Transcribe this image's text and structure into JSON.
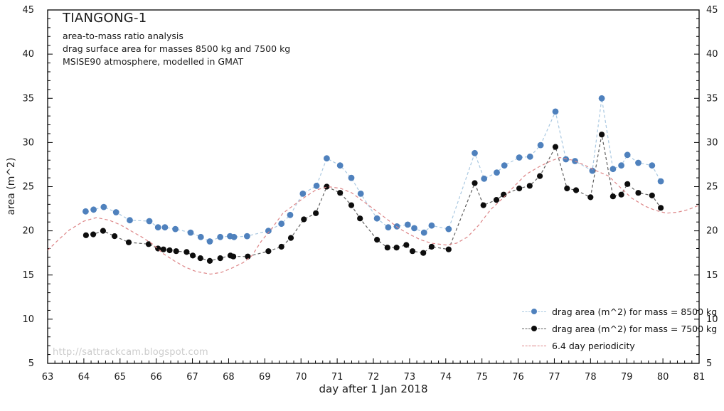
{
  "title": "TIANGONG-1",
  "subtitle_lines": [
    "area-to-mass ratio analysis",
    "drag surface area for masses 8500 kg and 7500 kg",
    "MSISE90 atmosphere, modelled in GMAT"
  ],
  "watermark": "http://sattrackcam.blogspot.com",
  "colors": {
    "frame": "#000000",
    "tick_text": "#1a1a1a",
    "blue_marker": "#4f81bd",
    "blue_line": "#a9c8e1",
    "black_marker": "#0d0d0d",
    "black_line": "#5f5f5f",
    "red_line": "#dd8587",
    "watermark_gray": "#cccccc"
  },
  "chart_data": {
    "type": "scatter",
    "title": "TIANGONG-1",
    "annotations": [
      "area-to-mass ratio analysis",
      "drag surface area for masses 8500 kg and 7500 kg",
      "MSISE90 atmosphere, modelled in GMAT"
    ],
    "xlabel": "day after 1 Jan 2018",
    "ylabel": "area (m^2)",
    "xlim": [
      63,
      81
    ],
    "ylim": [
      5,
      45
    ],
    "x_major_tick_step": 1,
    "x_minor_tick_step": 0.2,
    "y_major_tick_step": 5,
    "y_minor_tick_step": 1,
    "grid": false,
    "legend_position": "lower right",
    "series": [
      {
        "name": "drag area (m^2) for mass = 8500 kg",
        "style": "points-with-dashed-line",
        "marker": true,
        "marker_radius": 4.4,
        "color": "#4f81bd",
        "line_color": "#a9c8e1",
        "points": [
          [
            64.05,
            22.2
          ],
          [
            64.27,
            22.4
          ],
          [
            64.55,
            22.7
          ],
          [
            64.89,
            22.1
          ],
          [
            65.27,
            21.2
          ],
          [
            65.81,
            21.1
          ],
          [
            66.05,
            20.4
          ],
          [
            66.24,
            20.4
          ],
          [
            66.53,
            20.2
          ],
          [
            66.95,
            19.8
          ],
          [
            67.23,
            19.3
          ],
          [
            67.48,
            18.8
          ],
          [
            67.77,
            19.3
          ],
          [
            68.04,
            19.4
          ],
          [
            68.15,
            19.3
          ],
          [
            68.51,
            19.4
          ],
          [
            69.1,
            20.0
          ],
          [
            69.46,
            20.8
          ],
          [
            69.7,
            21.8
          ],
          [
            70.05,
            24.2
          ],
          [
            70.43,
            25.1
          ],
          [
            70.71,
            28.2
          ],
          [
            71.08,
            27.4
          ],
          [
            71.39,
            26.0
          ],
          [
            71.65,
            24.2
          ],
          [
            72.1,
            21.4
          ],
          [
            72.41,
            20.4
          ],
          [
            72.65,
            20.5
          ],
          [
            72.95,
            20.7
          ],
          [
            73.13,
            20.3
          ],
          [
            73.4,
            19.8
          ],
          [
            73.61,
            20.6
          ],
          [
            74.08,
            20.2
          ],
          [
            74.8,
            28.8
          ],
          [
            75.06,
            25.9
          ],
          [
            75.41,
            26.6
          ],
          [
            75.62,
            27.4
          ],
          [
            76.03,
            28.3
          ],
          [
            76.33,
            28.4
          ],
          [
            76.62,
            29.7
          ],
          [
            77.03,
            33.5
          ],
          [
            77.32,
            28.1
          ],
          [
            77.57,
            27.9
          ],
          [
            78.05,
            26.8
          ],
          [
            78.31,
            35.0
          ],
          [
            78.62,
            27.0
          ],
          [
            78.85,
            27.4
          ],
          [
            79.02,
            28.6
          ],
          [
            79.32,
            27.7
          ],
          [
            79.7,
            27.4
          ],
          [
            79.94,
            25.6
          ]
        ]
      },
      {
        "name": "drag area (m^2) for mass = 7500 kg",
        "style": "points-with-dashed-line",
        "marker": true,
        "marker_radius": 4.1,
        "color": "#0d0d0d",
        "line_color": "#5f5f5f",
        "points": [
          [
            64.06,
            19.5
          ],
          [
            64.26,
            19.6
          ],
          [
            64.53,
            20.0
          ],
          [
            64.85,
            19.4
          ],
          [
            65.24,
            18.7
          ],
          [
            65.79,
            18.5
          ],
          [
            66.05,
            18.0
          ],
          [
            66.2,
            17.9
          ],
          [
            66.37,
            17.8
          ],
          [
            66.55,
            17.7
          ],
          [
            66.84,
            17.6
          ],
          [
            67.01,
            17.2
          ],
          [
            67.22,
            16.9
          ],
          [
            67.48,
            16.6
          ],
          [
            67.77,
            16.9
          ],
          [
            68.05,
            17.2
          ],
          [
            68.13,
            17.1
          ],
          [
            68.53,
            17.1
          ],
          [
            69.1,
            17.7
          ],
          [
            69.46,
            18.2
          ],
          [
            69.72,
            19.2
          ],
          [
            70.08,
            21.3
          ],
          [
            70.41,
            22.0
          ],
          [
            70.71,
            25.0
          ],
          [
            71.08,
            24.3
          ],
          [
            71.39,
            22.9
          ],
          [
            71.63,
            21.4
          ],
          [
            72.1,
            19.0
          ],
          [
            72.39,
            18.1
          ],
          [
            72.64,
            18.1
          ],
          [
            72.91,
            18.4
          ],
          [
            73.08,
            17.7
          ],
          [
            73.38,
            17.5
          ],
          [
            73.61,
            18.2
          ],
          [
            74.08,
            17.9
          ],
          [
            74.8,
            25.4
          ],
          [
            75.04,
            22.9
          ],
          [
            75.4,
            23.5
          ],
          [
            75.6,
            24.1
          ],
          [
            76.03,
            24.8
          ],
          [
            76.32,
            25.1
          ],
          [
            76.6,
            26.2
          ],
          [
            77.03,
            29.5
          ],
          [
            77.35,
            24.8
          ],
          [
            77.6,
            24.6
          ],
          [
            78.0,
            23.8
          ],
          [
            78.31,
            30.9
          ],
          [
            78.62,
            23.9
          ],
          [
            78.85,
            24.1
          ],
          [
            79.02,
            25.3
          ],
          [
            79.32,
            24.3
          ],
          [
            79.7,
            24.0
          ],
          [
            79.94,
            22.6
          ]
        ]
      },
      {
        "name": "6.4 day periodicity",
        "style": "dashed-line",
        "marker": false,
        "color": "#dd8587",
        "line_color": "#dd8587",
        "points": [
          [
            63.0,
            17.8
          ],
          [
            63.3,
            19.0
          ],
          [
            63.6,
            20.1
          ],
          [
            64.0,
            21.1
          ],
          [
            64.35,
            21.5
          ],
          [
            64.7,
            21.2
          ],
          [
            65.0,
            20.7
          ],
          [
            65.3,
            20.0
          ],
          [
            65.6,
            19.3
          ],
          [
            65.9,
            18.5
          ],
          [
            66.2,
            17.4
          ],
          [
            66.5,
            16.6
          ],
          [
            66.8,
            15.9
          ],
          [
            67.1,
            15.4
          ],
          [
            67.5,
            15.1
          ],
          [
            67.8,
            15.3
          ],
          [
            68.1,
            15.8
          ],
          [
            68.4,
            16.4
          ],
          [
            68.65,
            17.2
          ],
          [
            68.9,
            18.8
          ],
          [
            69.2,
            20.3
          ],
          [
            69.5,
            22.0
          ],
          [
            69.8,
            22.9
          ],
          [
            70.1,
            23.8
          ],
          [
            70.4,
            24.6
          ],
          [
            70.75,
            25.0
          ],
          [
            71.1,
            24.8
          ],
          [
            71.4,
            24.3
          ],
          [
            71.7,
            23.4
          ],
          [
            72.0,
            22.5
          ],
          [
            72.35,
            21.4
          ],
          [
            72.7,
            20.3
          ],
          [
            73.0,
            19.6
          ],
          [
            73.3,
            19.0
          ],
          [
            73.6,
            18.6
          ],
          [
            74.0,
            18.4
          ],
          [
            74.3,
            18.6
          ],
          [
            74.6,
            19.3
          ],
          [
            74.9,
            20.6
          ],
          [
            75.24,
            22.4
          ],
          [
            75.63,
            23.9
          ],
          [
            75.93,
            25.2
          ],
          [
            76.22,
            26.4
          ],
          [
            76.6,
            27.3
          ],
          [
            76.9,
            27.9
          ],
          [
            77.15,
            28.3
          ],
          [
            77.5,
            28.0
          ],
          [
            77.8,
            27.5
          ],
          [
            78.1,
            26.9
          ],
          [
            78.5,
            26.2
          ],
          [
            78.8,
            25.0
          ],
          [
            79.14,
            23.7
          ],
          [
            79.5,
            22.8
          ],
          [
            79.8,
            22.3
          ],
          [
            80.1,
            22.0
          ],
          [
            80.4,
            22.1
          ],
          [
            80.7,
            22.4
          ],
          [
            81.0,
            22.9
          ]
        ]
      }
    ]
  }
}
